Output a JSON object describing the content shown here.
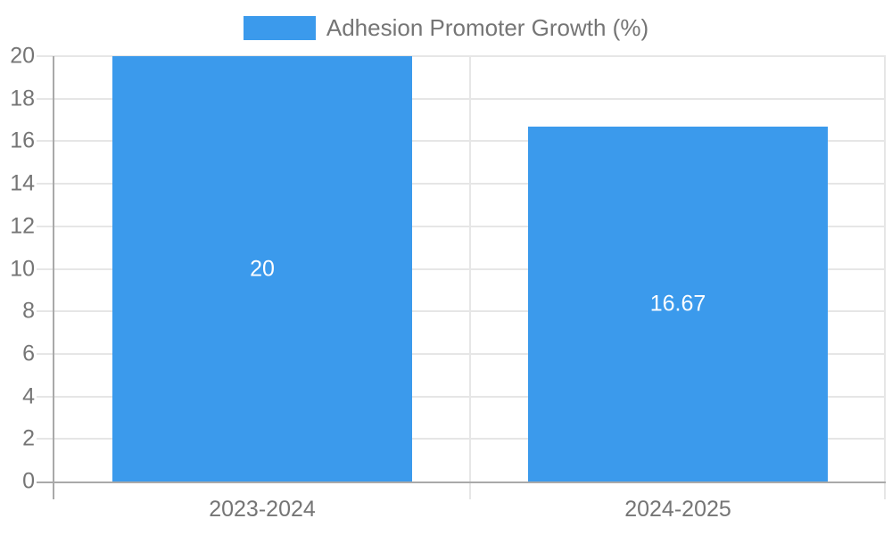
{
  "chart_data": {
    "type": "bar",
    "title": "",
    "xlabel": "",
    "ylabel": "",
    "categories": [
      "2023-2024",
      "2024-2025"
    ],
    "series": [
      {
        "name": "Adhesion Promoter Growth (%)",
        "values": [
          20,
          16.67
        ]
      }
    ],
    "value_labels": [
      "20",
      "16.67"
    ],
    "ylim": [
      0,
      20
    ],
    "ytick_step": 2,
    "ytick_labels": [
      "0",
      "2",
      "4",
      "6",
      "8",
      "10",
      "12",
      "14",
      "16",
      "18",
      "20"
    ],
    "grid": true,
    "legend_position": "top-center"
  },
  "legend": {
    "label": "Adhesion Promoter Growth (%)"
  },
  "colors": {
    "bar": "#3B9AEC",
    "grid": "#E6E6E6",
    "axis": "#A9A9A9",
    "tick_text": "#757575",
    "legend_text": "#757575",
    "bar_label_text": "#FFFFFF",
    "background": "#FFFFFF"
  }
}
